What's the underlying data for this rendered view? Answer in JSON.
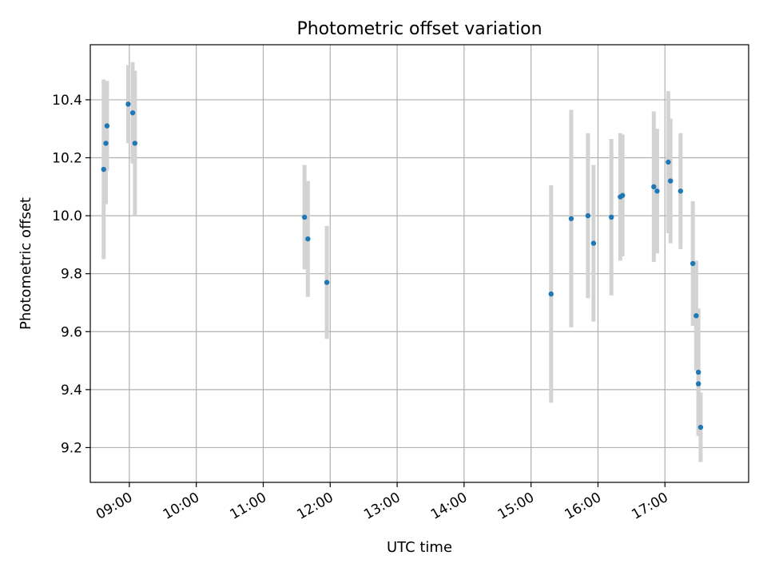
{
  "chart_data": {
    "type": "scatter",
    "title": "Photometric offset variation",
    "xlabel": "UTC time",
    "ylabel": "Photometric offset",
    "x_axis_kind": "time",
    "xlim": [
      "08:25",
      "18:15"
    ],
    "ylim": [
      9.08,
      10.59
    ],
    "grid": true,
    "point_color": "#1f77b4",
    "errorbar_color": "#d3d3d3",
    "x_ticks": [
      "09:00",
      "10:00",
      "11:00",
      "12:00",
      "13:00",
      "14:00",
      "15:00",
      "16:00",
      "17:00"
    ],
    "y_ticks": [
      9.2,
      9.4,
      9.6,
      9.8,
      10.0,
      10.2,
      10.4
    ],
    "y_tick_labels": [
      "9.2",
      "9.4",
      "9.6",
      "9.8",
      "10.0",
      "10.2",
      "10.4"
    ],
    "points": [
      {
        "t": "08:37",
        "y": 10.16,
        "err": 0.31
      },
      {
        "t": "08:39",
        "y": 10.25,
        "err": 0.21
      },
      {
        "t": "08:40",
        "y": 10.31,
        "err": 0.155
      },
      {
        "t": "08:59",
        "y": 10.385,
        "err": 0.135
      },
      {
        "t": "09:03",
        "y": 10.355,
        "err": 0.175
      },
      {
        "t": "09:05",
        "y": 10.25,
        "err": 0.25
      },
      {
        "t": "11:37",
        "y": 9.995,
        "err": 0.18
      },
      {
        "t": "11:40",
        "y": 9.92,
        "err": 0.2
      },
      {
        "t": "11:57",
        "y": 9.77,
        "err": 0.195
      },
      {
        "t": "15:18",
        "y": 9.73,
        "err": 0.375
      },
      {
        "t": "15:36",
        "y": 9.99,
        "err": 0.375
      },
      {
        "t": "15:51",
        "y": 10.0,
        "err": 0.285
      },
      {
        "t": "15:56",
        "y": 9.905,
        "err": 0.27
      },
      {
        "t": "16:12",
        "y": 9.995,
        "err": 0.27
      },
      {
        "t": "16:20",
        "y": 10.065,
        "err": 0.22
      },
      {
        "t": "16:22",
        "y": 10.07,
        "err": 0.21
      },
      {
        "t": "16:50",
        "y": 10.1,
        "err": 0.26
      },
      {
        "t": "16:53",
        "y": 10.085,
        "err": 0.215
      },
      {
        "t": "17:03",
        "y": 10.185,
        "err": 0.245
      },
      {
        "t": "17:05",
        "y": 10.12,
        "err": 0.215
      },
      {
        "t": "17:14",
        "y": 10.085,
        "err": 0.2
      },
      {
        "t": "17:25",
        "y": 9.835,
        "err": 0.215
      },
      {
        "t": "17:28",
        "y": 9.655,
        "err": 0.19
      },
      {
        "t": "17:30",
        "y": 9.46,
        "err": 0.22
      },
      {
        "t": "17:30",
        "y": 9.42,
        "err": 0.17
      },
      {
        "t": "17:32",
        "y": 9.27,
        "err": 0.12
      }
    ]
  }
}
